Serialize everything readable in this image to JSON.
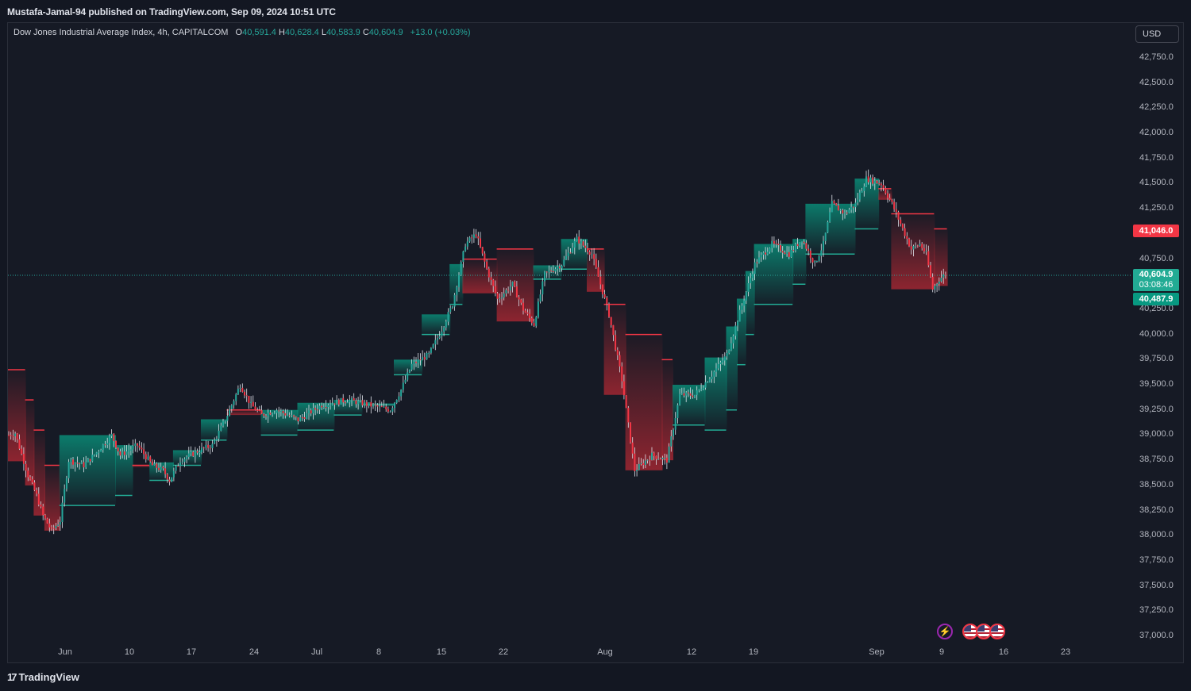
{
  "header": {
    "published": "Mustafa-Jamal-94 published on TradingView.com, Sep 09, 2024 10:51 UTC"
  },
  "legend": {
    "symbol": "Dow Jones Industrial Average Index, 4h, CAPITALCOM",
    "o_label": "O",
    "o": "40,591.4",
    "h_label": "H",
    "h": "40,628.4",
    "l_label": "L",
    "l": "40,583.9",
    "c_label": "C",
    "c": "40,604.9",
    "change": "+13.0 (+0.03%)"
  },
  "currency": "USD",
  "price_tags": {
    "red": "41,046.0",
    "last": "40,604.9",
    "countdown": "03:08:46",
    "teal": "40,487.9"
  },
  "footer": {
    "brand": "TradingView"
  },
  "colors": {
    "background": "#131722",
    "up": "#26a69a",
    "down": "#f23645",
    "band_up": "#089981",
    "band_down": "#b22833"
  },
  "chart_data": {
    "type": "candlestick",
    "title": "Dow Jones Industrial Average Index, 4h, CAPITALCOM",
    "y_ticks": [
      "42,750.0",
      "42,500.0",
      "42,250.0",
      "42,000.0",
      "41,750.0",
      "41,500.0",
      "41,250.0",
      "40,750.0",
      "40,250.0",
      "40,000.0",
      "39,750.0",
      "39,500.0",
      "39,250.0",
      "39,000.0",
      "38,750.0",
      "38,500.0",
      "38,250.0",
      "38,000.0",
      "37,750.0",
      "37,500.0",
      "37,250.0",
      "37,000.0"
    ],
    "ylim": [
      36900,
      42900
    ],
    "x_ticks": [
      "Jun",
      "10",
      "17",
      "24",
      "Jul",
      "8",
      "15",
      "22",
      "Aug",
      "12",
      "19",
      "Sep",
      "9",
      "16",
      "23"
    ],
    "close_path": [
      [
        0,
        39000
      ],
      [
        3,
        39020
      ],
      [
        9,
        38600
      ],
      [
        13,
        38400
      ],
      [
        16,
        38200
      ],
      [
        20,
        38050
      ],
      [
        24,
        38150
      ],
      [
        28,
        38750
      ],
      [
        35,
        38700
      ],
      [
        42,
        38850
      ],
      [
        48,
        39000
      ],
      [
        52,
        38800
      ],
      [
        60,
        38900
      ],
      [
        67,
        38700
      ],
      [
        72,
        38650
      ],
      [
        75,
        38550
      ],
      [
        80,
        38750
      ],
      [
        89,
        38850
      ],
      [
        95,
        38900
      ],
      [
        102,
        39200
      ],
      [
        108,
        39500
      ],
      [
        113,
        39300
      ],
      [
        118,
        39200
      ],
      [
        125,
        39250
      ],
      [
        135,
        39150
      ],
      [
        146,
        39300
      ],
      [
        158,
        39350
      ],
      [
        168,
        39300
      ],
      [
        178,
        39250
      ],
      [
        183,
        39450
      ],
      [
        188,
        39700
      ],
      [
        196,
        39800
      ],
      [
        202,
        40050
      ],
      [
        207,
        40300
      ],
      [
        213,
        40900
      ],
      [
        218,
        41000
      ],
      [
        223,
        40650
      ],
      [
        228,
        40350
      ],
      [
        235,
        40500
      ],
      [
        240,
        40250
      ],
      [
        245,
        40100
      ],
      [
        250,
        40600
      ],
      [
        258,
        40700
      ],
      [
        265,
        40950
      ],
      [
        272,
        40800
      ],
      [
        280,
        40200
      ],
      [
        286,
        39550
      ],
      [
        292,
        38650
      ],
      [
        300,
        38800
      ],
      [
        307,
        38750
      ],
      [
        313,
        39400
      ],
      [
        320,
        39400
      ],
      [
        328,
        39600
      ],
      [
        335,
        39800
      ],
      [
        340,
        40150
      ],
      [
        348,
        40700
      ],
      [
        356,
        40900
      ],
      [
        364,
        40800
      ],
      [
        370,
        40950
      ],
      [
        376,
        40700
      ],
      [
        380,
        40900
      ],
      [
        384,
        41300
      ],
      [
        390,
        41200
      ],
      [
        395,
        41300
      ],
      [
        400,
        41550
      ],
      [
        407,
        41500
      ],
      [
        412,
        41300
      ],
      [
        416,
        41100
      ],
      [
        421,
        40850
      ],
      [
        425,
        40900
      ],
      [
        428,
        40800
      ],
      [
        431,
        40450
      ],
      [
        434,
        40550
      ],
      [
        437,
        40605
      ]
    ],
    "band_steps": [
      [
        0,
        39650,
        "d"
      ],
      [
        8,
        39350,
        "d"
      ],
      [
        12,
        39050,
        "d"
      ],
      [
        17,
        38700,
        "d"
      ],
      [
        24,
        38300,
        "u"
      ],
      [
        50,
        38400,
        "u"
      ],
      [
        58,
        38700,
        "d"
      ],
      [
        66,
        38550,
        "u"
      ],
      [
        77,
        38700,
        "u"
      ],
      [
        90,
        38950,
        "u"
      ],
      [
        102,
        39250,
        "d"
      ],
      [
        118,
        39000,
        "u"
      ],
      [
        135,
        39050,
        "u"
      ],
      [
        152,
        39200,
        "u"
      ],
      [
        165,
        39300,
        "u"
      ],
      [
        180,
        39600,
        "u"
      ],
      [
        193,
        40000,
        "u"
      ],
      [
        206,
        40300,
        "u"
      ],
      [
        212,
        40750,
        "d"
      ],
      [
        228,
        40850,
        "d"
      ],
      [
        245,
        40550,
        "u"
      ],
      [
        258,
        40650,
        "u"
      ],
      [
        270,
        40850,
        "d"
      ],
      [
        278,
        40300,
        "d"
      ],
      [
        288,
        40000,
        "d"
      ],
      [
        305,
        39750,
        "d"
      ],
      [
        310,
        39100,
        "u"
      ],
      [
        325,
        39050,
        "u"
      ],
      [
        335,
        39250,
        "u"
      ],
      [
        340,
        39700,
        "u"
      ],
      [
        344,
        40000,
        "u"
      ],
      [
        348,
        40300,
        "u"
      ],
      [
        366,
        40500,
        "u"
      ],
      [
        372,
        40800,
        "u"
      ],
      [
        395,
        41050,
        "u"
      ],
      [
        406,
        41450,
        "d"
      ],
      [
        412,
        41200,
        "d"
      ],
      [
        432,
        41050,
        "d"
      ]
    ]
  }
}
